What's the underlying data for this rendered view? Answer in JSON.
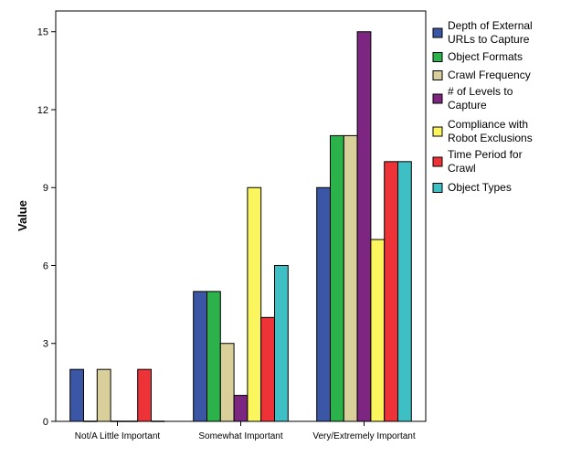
{
  "chart_data": {
    "type": "bar",
    "title": "",
    "xlabel": "",
    "ylabel": "Value",
    "ylim": [
      0,
      15.8
    ],
    "yticks": [
      0,
      3,
      6,
      9,
      12,
      15
    ],
    "grid": false,
    "legend_position": "right",
    "categories": [
      "Not/A Little Important",
      "Somewhat Important",
      "Very/Extremely Important"
    ],
    "series": [
      {
        "name": "Depth of External URLs to Capture",
        "legend_lines": [
          "Depth of External",
          "URLs to Capture"
        ],
        "color": "#3b56a4",
        "values": [
          2,
          5,
          9
        ]
      },
      {
        "name": "Object Formats",
        "legend_lines": [
          "Object Formats"
        ],
        "color": "#2bb24a",
        "values": [
          0,
          5,
          11
        ]
      },
      {
        "name": "Crawl Frequency",
        "legend_lines": [
          "Crawl Frequency"
        ],
        "color": "#d9cf9b",
        "values": [
          2,
          3,
          11
        ]
      },
      {
        "name": "# of Levels to Capture",
        "legend_lines": [
          "# of Levels to",
          "Capture"
        ],
        "color": "#7c2681",
        "values": [
          0,
          1,
          15
        ]
      },
      {
        "name": "Compliance with Robot Exclusions",
        "legend_lines": [
          "Compliance with",
          "Robot Exclusions"
        ],
        "color": "#fbf65e",
        "values": [
          0,
          9,
          7
        ]
      },
      {
        "name": "Time Period for Crawl",
        "legend_lines": [
          "Time Period for",
          "Crawl"
        ],
        "color": "#ee3338",
        "values": [
          2,
          4,
          10
        ]
      },
      {
        "name": "Object Types",
        "legend_lines": [
          "Object Types"
        ],
        "color": "#3ebfc3",
        "values": [
          0,
          6,
          10
        ]
      }
    ]
  }
}
